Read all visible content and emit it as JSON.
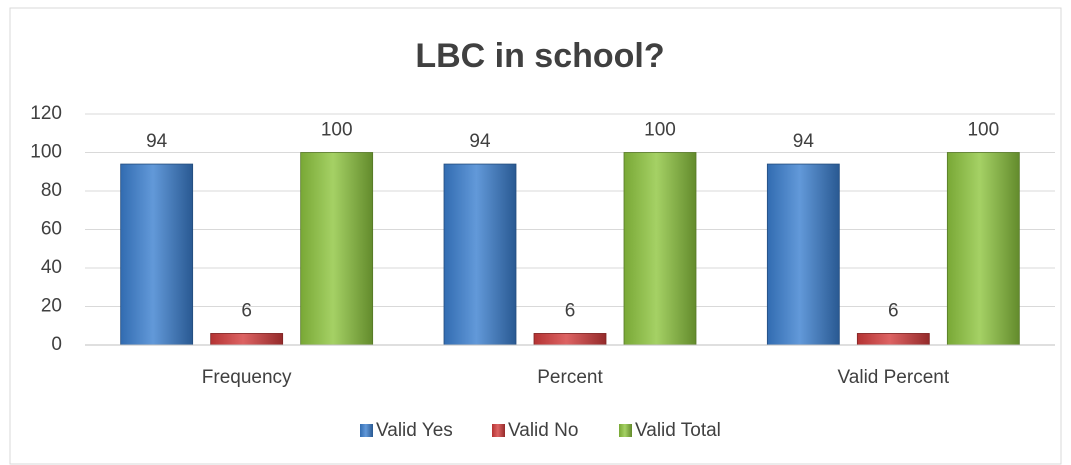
{
  "chart_data": {
    "type": "bar",
    "title": "LBC in school?",
    "categories": [
      "Frequency",
      "Percent",
      "Valid Percent"
    ],
    "series": [
      {
        "name": "Valid Yes",
        "color": "#3b7fd0",
        "values": [
          94,
          94,
          94
        ]
      },
      {
        "name": "Valid No",
        "color": "#d43c3c",
        "values": [
          6,
          6,
          6
        ]
      },
      {
        "name": "Valid Total",
        "color": "#8ec63f",
        "values": [
          100,
          100,
          100
        ]
      }
    ],
    "ylim": [
      0,
      120
    ],
    "yticks": [
      0,
      20,
      40,
      60,
      80,
      100,
      120
    ],
    "grid": true,
    "legend": "bottom"
  }
}
